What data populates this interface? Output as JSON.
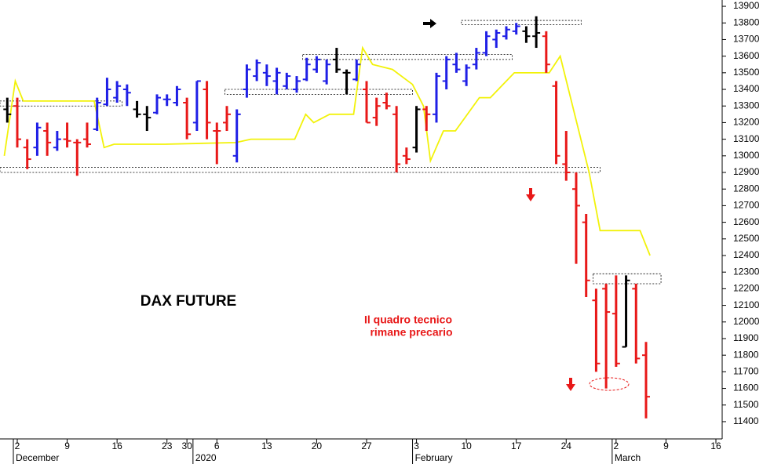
{
  "chart_data": {
    "type": "ohlc",
    "title": "DAX FUTURE",
    "annotation": [
      "Il quadro tecnico",
      "rimane precario"
    ],
    "xlim": [
      -1.73,
      70.63
    ],
    "ylim": [
      11296,
      13938
    ],
    "yticks": [
      11400,
      11500,
      11600,
      11700,
      11800,
      11900,
      12000,
      12100,
      12200,
      12300,
      12400,
      12500,
      12600,
      12700,
      12800,
      12900,
      13000,
      13100,
      13200,
      13300,
      13400,
      13500,
      13600,
      13700,
      13800,
      13900
    ],
    "xticks": [
      {
        "value": 0,
        "label": "2"
      },
      {
        "value": 5,
        "label": "9"
      },
      {
        "value": 10,
        "label": "16"
      },
      {
        "value": 15,
        "label": "23"
      },
      {
        "value": 17,
        "label": "30"
      },
      {
        "value": 20,
        "label": "6"
      },
      {
        "value": 25,
        "label": "13"
      },
      {
        "value": 30,
        "label": "20"
      },
      {
        "value": 35,
        "label": "27"
      },
      {
        "value": 40,
        "label": "3"
      },
      {
        "value": 45,
        "label": "10"
      },
      {
        "value": 50,
        "label": "17"
      },
      {
        "value": 55,
        "label": "24"
      },
      {
        "value": 60,
        "label": "2"
      },
      {
        "value": 65,
        "label": "9"
      },
      {
        "value": 70,
        "label": "16"
      }
    ],
    "month_labels": [
      {
        "value": 0,
        "label": "December"
      },
      {
        "value": 18,
        "label": "2020"
      },
      {
        "value": 40,
        "label": "February"
      },
      {
        "value": 60,
        "label": "March"
      }
    ],
    "bars": {
      "x": [
        -1,
        0,
        1,
        2,
        3,
        4,
        5,
        6,
        7,
        8,
        9,
        10,
        11,
        12,
        13,
        14,
        15,
        16,
        17,
        18,
        19,
        20,
        21,
        22,
        23,
        24,
        25,
        26,
        27,
        28,
        29,
        30,
        31,
        32,
        33,
        34,
        35,
        36,
        37,
        38,
        39,
        40,
        41,
        42,
        43,
        44,
        45,
        46,
        47,
        48,
        49,
        50,
        51,
        52,
        53,
        54,
        55,
        56,
        57,
        58,
        59,
        60,
        61,
        62,
        63
      ],
      "open": [
        13280,
        13300,
        13050,
        13050,
        13150,
        13050,
        13100,
        13080,
        13100,
        13160,
        13310,
        13350,
        13400,
        13280,
        13250,
        13260,
        13340,
        13320,
        13320,
        13200,
        13400,
        13150,
        13200,
        13000,
        13400,
        13480,
        13500,
        13450,
        13420,
        13400,
        13460,
        13520,
        13450,
        13580,
        13500,
        13460,
        13400,
        13230,
        13320,
        13250,
        13000,
        13050,
        13280,
        13250,
        13450,
        13550,
        13450,
        13550,
        13620,
        13700,
        13720,
        13750,
        13750,
        13720,
        13720,
        13420,
        12950,
        12800,
        12600,
        12130,
        12200,
        12050,
        11850,
        12200,
        11800
      ],
      "high": [
        13350,
        13350,
        13100,
        13200,
        13200,
        13150,
        13200,
        13100,
        13200,
        13350,
        13470,
        13450,
        13430,
        13330,
        13300,
        13370,
        13370,
        13420,
        13350,
        13450,
        13450,
        13200,
        13300,
        13280,
        13550,
        13580,
        13550,
        13530,
        13500,
        13480,
        13590,
        13600,
        13580,
        13650,
        13520,
        13580,
        13450,
        13350,
        13380,
        13300,
        13050,
        13300,
        13300,
        13500,
        13600,
        13620,
        13550,
        13650,
        13750,
        13760,
        13780,
        13800,
        13780,
        13840,
        13750,
        13450,
        13150,
        12900,
        12650,
        12200,
        12230,
        12280,
        12280,
        12230,
        11880
      ],
      "low": [
        13200,
        13050,
        12920,
        13000,
        13000,
        13030,
        13050,
        12880,
        13050,
        13150,
        13300,
        13320,
        13300,
        13230,
        13150,
        13250,
        13300,
        13300,
        13100,
        13150,
        13100,
        12950,
        13150,
        12960,
        13350,
        13450,
        13420,
        13370,
        13400,
        13380,
        13450,
        13500,
        13430,
        13500,
        13370,
        13450,
        13200,
        13180,
        13280,
        12900,
        12950,
        13020,
        13150,
        13200,
        13400,
        13500,
        13420,
        13520,
        13600,
        13650,
        13700,
        13730,
        13680,
        13650,
        13500,
        12950,
        12850,
        12350,
        12150,
        11700,
        11600,
        11730,
        11850,
        11750,
        11420
      ],
      "close": [
        13250,
        13100,
        12980,
        13170,
        13080,
        13100,
        13090,
        13080,
        13070,
        13320,
        13400,
        13420,
        13380,
        13250,
        13230,
        13350,
        13340,
        13400,
        13130,
        13450,
        13200,
        13150,
        13250,
        13250,
        13520,
        13560,
        13480,
        13500,
        13480,
        13450,
        13550,
        13580,
        13550,
        13520,
        13500,
        13550,
        13200,
        13300,
        13300,
        12950,
        12980,
        13280,
        13250,
        13480,
        13580,
        13520,
        13530,
        13620,
        13720,
        13740,
        13760,
        13780,
        13720,
        13740,
        13550,
        13000,
        12900,
        12700,
        12250,
        11750,
        12060,
        11750,
        12250,
        11780,
        11550
      ],
      "colors": [
        "#000000",
        "#e81818",
        "#e81818",
        "#1f1fe6",
        "#e81818",
        "#1f1fe6",
        "#e81818",
        "#e81818",
        "#e81818",
        "#1f1fe6",
        "#1f1fe6",
        "#1f1fe6",
        "#1f1fe6",
        "#000000",
        "#000000",
        "#1f1fe6",
        "#1f1fe6",
        "#1f1fe6",
        "#e81818",
        "#1f1fe6",
        "#e81818",
        "#e81818",
        "#e81818",
        "#1f1fe6",
        "#1f1fe6",
        "#1f1fe6",
        "#1f1fe6",
        "#1f1fe6",
        "#1f1fe6",
        "#1f1fe6",
        "#1f1fe6",
        "#1f1fe6",
        "#1f1fe6",
        "#000000",
        "#000000",
        "#1f1fe6",
        "#e81818",
        "#e81818",
        "#e81818",
        "#e81818",
        "#e81818",
        "#000000",
        "#e81818",
        "#1f1fe6",
        "#1f1fe6",
        "#1f1fe6",
        "#1f1fe6",
        "#1f1fe6",
        "#1f1fe6",
        "#1f1fe6",
        "#1f1fe6",
        "#1f1fe6",
        "#000000",
        "#000000",
        "#e81818",
        "#e81818",
        "#e81818",
        "#e81818",
        "#e81818",
        "#e81818",
        "#e81818",
        "#e81818",
        "#000000",
        "#e81818",
        "#e81818"
      ]
    },
    "overlay": {
      "color": "#f2f20a",
      "x": [
        -1.3,
        -0.2,
        0.6,
        7.7,
        8.7,
        9.7,
        14.8,
        21.9,
        23.4,
        27.8,
        28.9,
        29.7,
        31.3,
        33.7,
        34.6,
        35.6,
        37.6,
        39.6,
        40.7,
        41.4,
        42.7,
        43.9,
        46.3,
        47.4,
        49.8,
        53.3,
        54.4,
        57.3,
        58.4,
        62.4,
        63.4
      ],
      "values": [
        13000,
        13450,
        13330,
        13330,
        13050,
        13070,
        13070,
        13080,
        13100,
        13100,
        13250,
        13200,
        13250,
        13250,
        13650,
        13550,
        13520,
        13430,
        13300,
        12970,
        13150,
        13150,
        13350,
        13350,
        13500,
        13500,
        13600,
        12900,
        12550,
        12550,
        12400
      ]
    },
    "zones": [
      {
        "x": [
          -1.73,
          10.5
        ],
        "y": [
          13300,
          13330
        ]
      },
      {
        "x": [
          -1.73,
          58.4
        ],
        "y": [
          12900,
          12930
        ]
      },
      {
        "x": [
          20.8,
          39.6
        ],
        "y": [
          13370,
          13400
        ]
      },
      {
        "x": [
          28.6,
          49.6
        ],
        "y": [
          13580,
          13610
        ]
      },
      {
        "x": [
          44.5,
          56.5
        ],
        "y": [
          13790,
          13815
        ]
      },
      {
        "x": [
          57.7,
          64.5
        ],
        "y": [
          12230,
          12290
        ]
      }
    ]
  }
}
